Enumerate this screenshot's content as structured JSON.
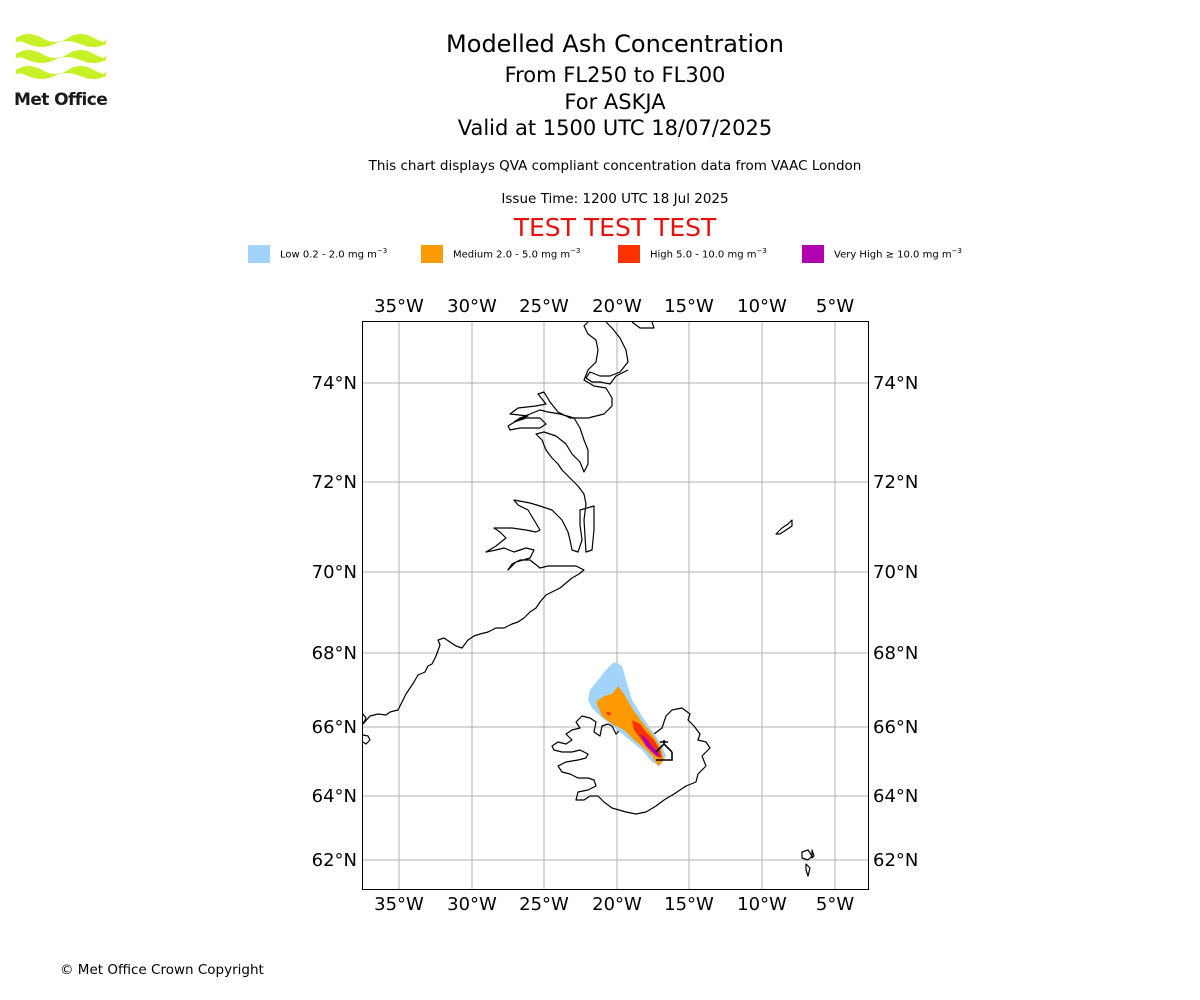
{
  "logo": {
    "text": "Met Office",
    "icon": "met-office-wave-logo",
    "color": "#c8f026"
  },
  "header": {
    "title": "Modelled Ash Concentration",
    "levels": "From FL250 to FL300",
    "volcano": "For ASKJA",
    "valid": "Valid at 1500 UTC 18/07/2025",
    "note": "This chart displays QVA compliant concentration data from VAAC London",
    "issue": "Issue Time: 1200 UTC 18 Jul 2025",
    "test_banner": "TEST TEST TEST"
  },
  "legend": [
    {
      "label": "Low 0.2 - 2.0 mg m",
      "exp": "−3",
      "color": "#a1d4f8"
    },
    {
      "label": "Medium 2.0 - 5.0 mg m",
      "exp": "−3",
      "color": "#fe9a03"
    },
    {
      "label": "High 5.0 - 10.0 mg m",
      "exp": "−3",
      "color": "#fe3101"
    },
    {
      "label": "Very High  ≥  10.0 mg m",
      "exp": "−3",
      "color": "#b201af"
    }
  ],
  "map": {
    "lon_ticks": [
      "35°W",
      "30°W",
      "25°W",
      "20°W",
      "15°W",
      "10°W",
      "5°W"
    ],
    "lat_ticks": [
      "74°N",
      "72°N",
      "70°N",
      "68°N",
      "66°N",
      "64°N",
      "62°N"
    ],
    "grid": true,
    "volcano_marker": "volcano-icon"
  },
  "footer": {
    "copyright": "© Met Office Crown Copyright"
  }
}
